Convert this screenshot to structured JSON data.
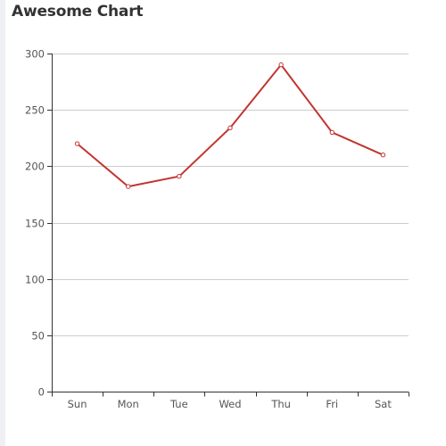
{
  "chart_data": {
    "type": "line",
    "title": "Awesome Chart",
    "categories": [
      "Sun",
      "Mon",
      "Tue",
      "Wed",
      "Thu",
      "Fri",
      "Sat"
    ],
    "series": [
      {
        "values": [
          220,
          182,
          191,
          234,
          290,
          230,
          210
        ]
      }
    ],
    "ylim": [
      0,
      300
    ],
    "yticks": [
      0,
      50,
      100,
      150,
      200,
      250,
      300
    ],
    "grid": true,
    "line_color": "#c23531",
    "axis_color": "#333333",
    "grid_color": "#cccccc"
  }
}
